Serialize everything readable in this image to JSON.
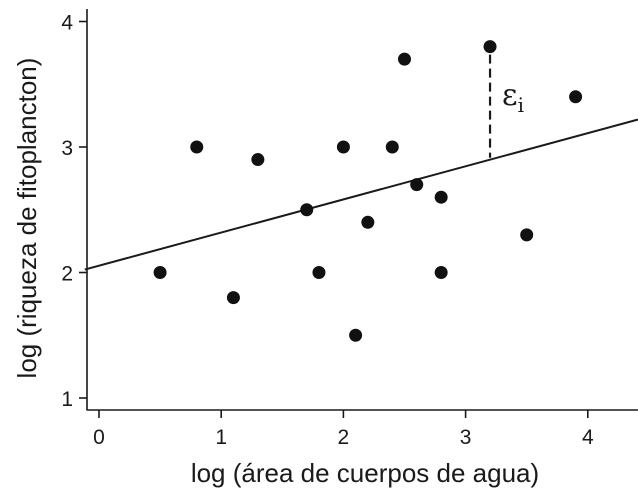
{
  "chart_data": {
    "type": "scatter",
    "xlabel": "log (área de cuerpos de agua)",
    "ylabel": "log (riqueza de fitoplancton)",
    "xlim": [
      -0.1,
      4.45
    ],
    "ylim": [
      0.9,
      4.1
    ],
    "x_ticks": [
      0,
      1,
      2,
      3,
      4
    ],
    "y_ticks": [
      1,
      2,
      3,
      4
    ],
    "grid": false,
    "points": [
      {
        "x": 0.5,
        "y": 2.0
      },
      {
        "x": 0.8,
        "y": 3.0
      },
      {
        "x": 1.1,
        "y": 1.8
      },
      {
        "x": 1.3,
        "y": 2.9
      },
      {
        "x": 1.7,
        "y": 2.5
      },
      {
        "x": 1.8,
        "y": 2.0
      },
      {
        "x": 2.0,
        "y": 3.0
      },
      {
        "x": 2.1,
        "y": 1.5
      },
      {
        "x": 2.2,
        "y": 2.4
      },
      {
        "x": 2.4,
        "y": 3.0
      },
      {
        "x": 2.5,
        "y": 3.7
      },
      {
        "x": 2.6,
        "y": 2.7
      },
      {
        "x": 2.8,
        "y": 2.6
      },
      {
        "x": 2.8,
        "y": 2.0
      },
      {
        "x": 3.2,
        "y": 3.8
      },
      {
        "x": 3.5,
        "y": 2.3
      },
      {
        "x": 3.9,
        "y": 3.4
      }
    ],
    "regression_line": {
      "intercept": 2.05,
      "slope": 0.265
    },
    "annotation": {
      "text": "ε",
      "subscript": "i",
      "x": 3.2,
      "y_point": 3.8,
      "description": "residual"
    }
  }
}
